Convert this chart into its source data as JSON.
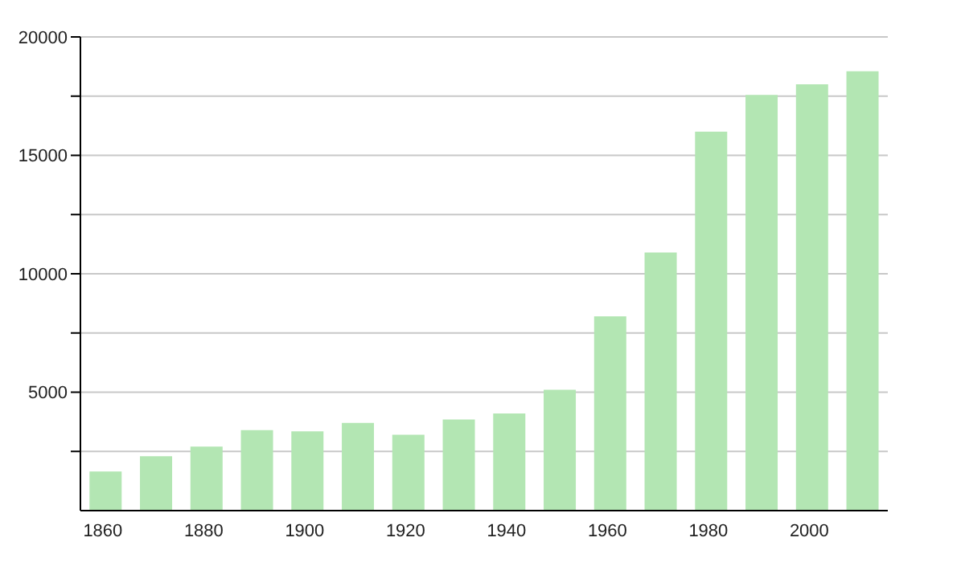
{
  "chart_data": {
    "type": "bar",
    "categories": [
      "1860",
      null,
      "1880",
      null,
      "1900",
      null,
      "1920",
      null,
      "1940",
      null,
      "1960",
      null,
      "1980",
      null,
      "2000",
      null
    ],
    "values": [
      1650,
      2300,
      2700,
      3400,
      3350,
      3700,
      3200,
      3850,
      4100,
      5100,
      8200,
      10900,
      16000,
      17550,
      18000,
      18550
    ],
    "color": "#b3e6b3",
    "ylim": [
      0,
      20000
    ],
    "yticks": [
      {
        "value": 2500,
        "label": null
      },
      5000,
      {
        "value": 7500,
        "label": null
      },
      10000,
      {
        "value": 12500,
        "label": null
      },
      15000,
      {
        "value": 17500,
        "label": null
      },
      20000
    ],
    "grid": "y"
  }
}
